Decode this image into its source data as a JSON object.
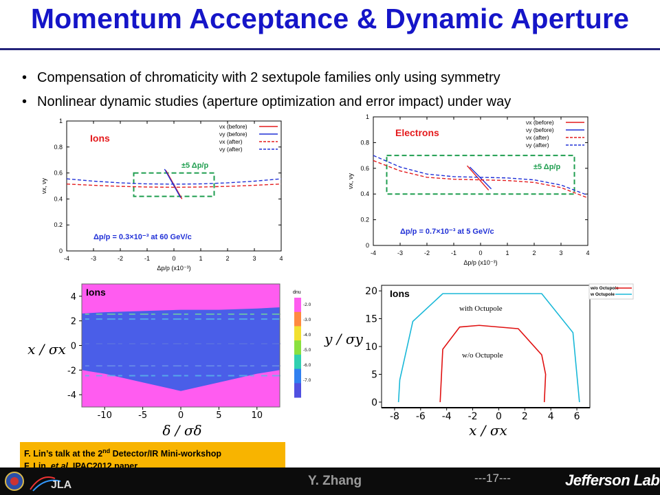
{
  "slide": {
    "title": "Momentum Acceptance & Dynamic Aperture",
    "bullets": [
      "Compensation of chromaticity with 2 sextupole families only using symmetry",
      "Nonlinear dynamic studies (aperture optimization and error impact) under way"
    ],
    "reference": {
      "line1_a": "F. Lin’s talk at the 2",
      "line1_sup": "nd",
      "line1_b": " Detector/IR Mini-workshop",
      "line2_a": "F, Lin, ",
      "line2_i": "et al",
      "line2_b": ", IPAC2012 paper"
    },
    "footer": {
      "author": "Y. Zhang",
      "page": "---17---",
      "lab": "Jefferson Lab",
      "logo_text": "JLA"
    }
  },
  "colors": {
    "title": "#1515c8",
    "before_x": "#e41a1c",
    "before_y": "#1f2fd6",
    "box": "#1f9e4f",
    "magenta": "#ff5cf0",
    "blue_region": "#4a5ee8",
    "cyan": "#19b8d8",
    "red": "#e01010"
  },
  "chart_data": [
    {
      "type": "line",
      "name_label": "Ions",
      "xlabel": "Δp/p (x10⁻³)",
      "ylabel": "νx, νy",
      "xlim": [
        -4,
        4
      ],
      "ylim": [
        0,
        1
      ],
      "xticks": [
        "-4",
        "-3",
        "-2",
        "-1",
        "0",
        "1",
        "2",
        "3",
        "4"
      ],
      "yticks": [
        "0",
        "0.2",
        "0.4",
        "0.6",
        "0.8",
        "1"
      ],
      "legend": [
        "νx (before)",
        "νy (before)",
        "νx (after)",
        "νy (after)"
      ],
      "legend_position": "top-right",
      "annotation_box": "±5 Δp/p",
      "annotation": "Δp/p = 0.3×10⁻³ at 60 GeV/c",
      "series": [
        {
          "name": "νx (before)",
          "style": "solid",
          "x": [
            -0.3,
            0.3
          ],
          "y": [
            0.62,
            0.4
          ]
        },
        {
          "name": "νy (before)",
          "style": "solid",
          "x": [
            -0.35,
            0.25
          ],
          "y": [
            0.63,
            0.41
          ]
        },
        {
          "name": "νx (after)",
          "style": "dashed",
          "x": [
            -4,
            -3,
            -2,
            -1,
            0,
            1,
            2,
            3,
            4
          ],
          "y": [
            0.515,
            0.505,
            0.497,
            0.492,
            0.49,
            0.492,
            0.497,
            0.505,
            0.515
          ]
        },
        {
          "name": "νy (after)",
          "style": "dashed",
          "x": [
            -4,
            -3,
            -2,
            -1,
            0,
            1,
            2,
            3,
            4
          ],
          "y": [
            0.555,
            0.537,
            0.524,
            0.516,
            0.514,
            0.516,
            0.524,
            0.537,
            0.555
          ]
        }
      ],
      "box_region": {
        "x": [
          -1.5,
          1.5
        ],
        "y": [
          0.42,
          0.6
        ]
      }
    },
    {
      "type": "line",
      "name_label": "Electrons",
      "xlabel": "Δp/p (x10⁻³)",
      "ylabel": "νx, νy",
      "xlim": [
        -4,
        4
      ],
      "ylim": [
        0,
        1
      ],
      "xticks": [
        "-4",
        "-3",
        "-2",
        "-1",
        "0",
        "1",
        "2",
        "3",
        "4"
      ],
      "yticks": [
        "0",
        "0.2",
        "0.4",
        "0.6",
        "0.8",
        "1"
      ],
      "legend": [
        "νx (before)",
        "νy (before)",
        "νx (after)",
        "νy (after)"
      ],
      "legend_position": "top-right",
      "annotation_box": "±5 Δp/p",
      "annotation": "Δp/p = 0.7×10⁻³ at 5 GeV/c",
      "series": [
        {
          "name": "νx (before)",
          "style": "solid",
          "x": [
            -0.5,
            0.3
          ],
          "y": [
            0.62,
            0.43
          ]
        },
        {
          "name": "νy (before)",
          "style": "solid",
          "x": [
            -0.4,
            0.4
          ],
          "y": [
            0.61,
            0.44
          ]
        },
        {
          "name": "νx (after)",
          "style": "dashed",
          "x": [
            -4,
            -3,
            -2,
            -1,
            0,
            1,
            2,
            3,
            4
          ],
          "y": [
            0.66,
            0.58,
            0.53,
            0.515,
            0.51,
            0.505,
            0.49,
            0.45,
            0.37
          ]
        },
        {
          "name": "νy (after)",
          "style": "dashed",
          "x": [
            -4,
            -3,
            -2,
            -1,
            0,
            1,
            2,
            3,
            4
          ],
          "y": [
            0.7,
            0.61,
            0.555,
            0.535,
            0.53,
            0.525,
            0.51,
            0.47,
            0.39
          ]
        }
      ],
      "box_region": {
        "x": [
          -3.5,
          3.5
        ],
        "y": [
          0.4,
          0.7
        ]
      }
    },
    {
      "type": "heatmap",
      "name_label": "Ions",
      "xlabel": "δ / σδ",
      "ylabel": "x / σx",
      "xlim": [
        -13,
        13
      ],
      "ylim": [
        -5,
        5
      ],
      "xticks": [
        "-10",
        "-5",
        "0",
        "5",
        "10"
      ],
      "yticks": [
        "-4",
        "-2",
        "0",
        "2",
        "4"
      ],
      "colorbar_title": "dnu",
      "colorbar_ticks": [
        "-2.0",
        "-3.0",
        "-4.0",
        "-5.0",
        "-6.0",
        "-7.0"
      ],
      "stable_region": {
        "x": [
          -13,
          -10,
          -5,
          0,
          5,
          10,
          13
        ],
        "upper": [
          2.6,
          2.7,
          2.8,
          2.9,
          2.9,
          3.0,
          3.1
        ],
        "lower": [
          -2.0,
          -2.3,
          -3.0,
          -3.7,
          -3.0,
          -2.3,
          -2.0
        ]
      }
    },
    {
      "type": "line",
      "name_label": "Ions",
      "xlabel": "x / σx",
      "ylabel": "y / σy",
      "xlim": [
        -9,
        7
      ],
      "ylim": [
        -1,
        21
      ],
      "xticks": [
        "-8",
        "-6",
        "-4",
        "-2",
        "0",
        "2",
        "4",
        "6"
      ],
      "yticks": [
        "0",
        "5",
        "10",
        "15",
        "20"
      ],
      "legend": [
        "w/o Octupole",
        "w Octupole"
      ],
      "legend_position": "top-right",
      "series": [
        {
          "name": "with Octupole",
          "x": [
            -7.7,
            -7.6,
            -6.6,
            -4.3,
            3.3,
            5.7,
            6.2
          ],
          "y": [
            0,
            4,
            14.5,
            19.5,
            19.5,
            12.5,
            0
          ]
        },
        {
          "name": "w/o Octupole",
          "x": [
            -4.5,
            -4.3,
            -3.0,
            -1.5,
            1.5,
            3.3,
            3.6,
            3.5
          ],
          "y": [
            0,
            9.5,
            13.5,
            13.8,
            13.2,
            8.5,
            5,
            0
          ]
        }
      ]
    }
  ]
}
